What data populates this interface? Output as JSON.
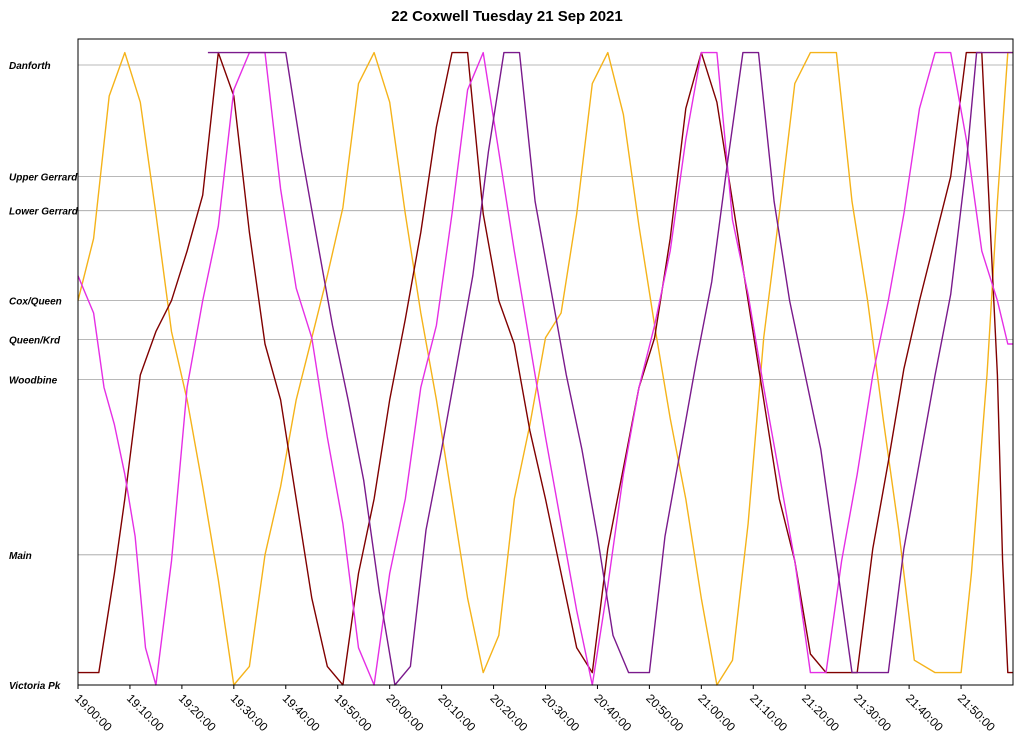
{
  "chart_data": {
    "type": "line",
    "title": "22 Coxwell Tuesday 21 Sep 2021",
    "xlabel": "",
    "ylabel": "",
    "x_range": [
      "19:00:00",
      "22:00:00"
    ],
    "x_ticks": [
      "19:00:00",
      "19:10:00",
      "19:20:00",
      "19:30:00",
      "19:40:00",
      "19:50:00",
      "20:00:00",
      "20:10:00",
      "20:20:00",
      "20:30:00",
      "20:40:00",
      "20:50:00",
      "21:00:00",
      "21:10:00",
      "21:20:00",
      "21:30:00",
      "21:40:00",
      "21:50:00"
    ],
    "stops": [
      {
        "name": "Danforth",
        "distance": 1.0
      },
      {
        "name": "Upper Gerrard",
        "distance": 0.82
      },
      {
        "name": "Lower Gerrard",
        "distance": 0.765
      },
      {
        "name": "Cox/Queen",
        "distance": 0.62
      },
      {
        "name": "Queen/Krd",
        "distance": 0.557
      },
      {
        "name": "Woodbine",
        "distance": 0.493
      },
      {
        "name": "Main",
        "distance": 0.21
      },
      {
        "name": "Victoria Pk",
        "distance": 0.0
      }
    ],
    "grid": true,
    "legend": "none",
    "series": [
      {
        "color": "#f5b31a",
        "points": [
          [
            0,
            0.62
          ],
          [
            3,
            0.72
          ],
          [
            6,
            0.95
          ],
          [
            9,
            1.02
          ],
          [
            12,
            0.94
          ],
          [
            15,
            0.76
          ],
          [
            18,
            0.57
          ],
          [
            21,
            0.46
          ],
          [
            24,
            0.32
          ],
          [
            27,
            0.17
          ],
          [
            30,
            0.0
          ],
          [
            33,
            0.03
          ],
          [
            36,
            0.21
          ],
          [
            39,
            0.32
          ],
          [
            42,
            0.46
          ],
          [
            45,
            0.56
          ],
          [
            48,
            0.66
          ],
          [
            51,
            0.77
          ],
          [
            54,
            0.97
          ],
          [
            57,
            1.02
          ],
          [
            60,
            0.94
          ],
          [
            63,
            0.76
          ],
          [
            66,
            0.6
          ],
          [
            69,
            0.46
          ],
          [
            72,
            0.3
          ],
          [
            75,
            0.14
          ],
          [
            78,
            0.02
          ],
          [
            81,
            0.08
          ],
          [
            84,
            0.3
          ],
          [
            87,
            0.42
          ],
          [
            90,
            0.56
          ],
          [
            93,
            0.6
          ],
          [
            96,
            0.76
          ],
          [
            99,
            0.97
          ],
          [
            102,
            1.02
          ],
          [
            105,
            0.92
          ],
          [
            108,
            0.74
          ],
          [
            111,
            0.58
          ],
          [
            114,
            0.43
          ],
          [
            117,
            0.3
          ],
          [
            120,
            0.14
          ],
          [
            123,
            0.0
          ],
          [
            126,
            0.04
          ],
          [
            129,
            0.26
          ],
          [
            132,
            0.56
          ],
          [
            135,
            0.76
          ],
          [
            138,
            0.97
          ],
          [
            141,
            1.02
          ],
          [
            146,
            1.02
          ],
          [
            149,
            0.78
          ],
          [
            152,
            0.62
          ],
          [
            155,
            0.43
          ],
          [
            158,
            0.25
          ],
          [
            161,
            0.04
          ],
          [
            165,
            0.02
          ],
          [
            170,
            0.02
          ],
          [
            172,
            0.18
          ],
          [
            175,
            0.5
          ],
          [
            177,
            0.78
          ],
          [
            179,
            1.02
          ],
          [
            180,
            1.02
          ]
        ]
      },
      {
        "color": "#800000",
        "points": [
          [
            0,
            0.02
          ],
          [
            4,
            0.02
          ],
          [
            7,
            0.18
          ],
          [
            9,
            0.3
          ],
          [
            12,
            0.5
          ],
          [
            15,
            0.57
          ],
          [
            18,
            0.62
          ],
          [
            21,
            0.7
          ],
          [
            24,
            0.79
          ],
          [
            27,
            1.02
          ],
          [
            30,
            0.95
          ],
          [
            33,
            0.73
          ],
          [
            36,
            0.55
          ],
          [
            39,
            0.46
          ],
          [
            42,
            0.3
          ],
          [
            45,
            0.14
          ],
          [
            48,
            0.03
          ],
          [
            51,
            0.0
          ],
          [
            54,
            0.18
          ],
          [
            57,
            0.3
          ],
          [
            60,
            0.46
          ],
          [
            63,
            0.59
          ],
          [
            66,
            0.73
          ],
          [
            69,
            0.9
          ],
          [
            72,
            1.02
          ],
          [
            75,
            1.02
          ],
          [
            78,
            0.76
          ],
          [
            81,
            0.62
          ],
          [
            84,
            0.55
          ],
          [
            87,
            0.41
          ],
          [
            90,
            0.3
          ],
          [
            93,
            0.18
          ],
          [
            96,
            0.06
          ],
          [
            99,
            0.02
          ],
          [
            102,
            0.22
          ],
          [
            105,
            0.35
          ],
          [
            108,
            0.48
          ],
          [
            111,
            0.56
          ],
          [
            114,
            0.72
          ],
          [
            117,
            0.93
          ],
          [
            120,
            1.02
          ],
          [
            123,
            0.94
          ],
          [
            126,
            0.78
          ],
          [
            129,
            0.62
          ],
          [
            132,
            0.46
          ],
          [
            135,
            0.3
          ],
          [
            138,
            0.2
          ],
          [
            141,
            0.05
          ],
          [
            144,
            0.02
          ],
          [
            150,
            0.02
          ],
          [
            153,
            0.22
          ],
          [
            156,
            0.36
          ],
          [
            159,
            0.51
          ],
          [
            162,
            0.62
          ],
          [
            165,
            0.72
          ],
          [
            168,
            0.82
          ],
          [
            171,
            1.02
          ],
          [
            174,
            1.02
          ],
          [
            177,
            0.5
          ],
          [
            178,
            0.2
          ],
          [
            179,
            0.02
          ],
          [
            180,
            0.02
          ]
        ]
      },
      {
        "color": "#e52fe5",
        "points": [
          [
            0,
            0.66
          ],
          [
            3,
            0.6
          ],
          [
            5,
            0.48
          ],
          [
            7,
            0.42
          ],
          [
            9,
            0.34
          ],
          [
            11,
            0.24
          ],
          [
            13,
            0.06
          ],
          [
            15,
            0.0
          ],
          [
            18,
            0.2
          ],
          [
            21,
            0.48
          ],
          [
            24,
            0.62
          ],
          [
            27,
            0.74
          ],
          [
            30,
            0.96
          ],
          [
            33,
            1.02
          ],
          [
            36,
            1.02
          ],
          [
            39,
            0.8
          ],
          [
            42,
            0.64
          ],
          [
            45,
            0.56
          ],
          [
            48,
            0.4
          ],
          [
            51,
            0.26
          ],
          [
            54,
            0.06
          ],
          [
            57,
            0.0
          ],
          [
            60,
            0.18
          ],
          [
            63,
            0.3
          ],
          [
            66,
            0.48
          ],
          [
            69,
            0.58
          ],
          [
            72,
            0.76
          ],
          [
            75,
            0.96
          ],
          [
            78,
            1.02
          ],
          [
            81,
            0.86
          ],
          [
            84,
            0.7
          ],
          [
            87,
            0.55
          ],
          [
            90,
            0.4
          ],
          [
            93,
            0.26
          ],
          [
            96,
            0.12
          ],
          [
            99,
            0.0
          ],
          [
            102,
            0.16
          ],
          [
            105,
            0.34
          ],
          [
            108,
            0.48
          ],
          [
            111,
            0.58
          ],
          [
            114,
            0.7
          ],
          [
            117,
            0.88
          ],
          [
            120,
            1.02
          ],
          [
            123,
            1.02
          ],
          [
            126,
            0.75
          ],
          [
            129,
            0.63
          ],
          [
            132,
            0.48
          ],
          [
            135,
            0.34
          ],
          [
            138,
            0.2
          ],
          [
            141,
            0.02
          ],
          [
            144,
            0.02
          ],
          [
            147,
            0.2
          ],
          [
            150,
            0.34
          ],
          [
            153,
            0.5
          ],
          [
            156,
            0.62
          ],
          [
            159,
            0.76
          ],
          [
            162,
            0.93
          ],
          [
            165,
            1.02
          ],
          [
            168,
            1.02
          ],
          [
            171,
            0.88
          ],
          [
            174,
            0.7
          ],
          [
            177,
            0.62
          ],
          [
            179,
            0.55
          ],
          [
            180,
            0.55
          ]
        ]
      },
      {
        "color": "#7a1a8c",
        "points": [
          [
            25,
            1.02
          ],
          [
            40,
            1.02
          ],
          [
            43,
            0.86
          ],
          [
            46,
            0.72
          ],
          [
            49,
            0.58
          ],
          [
            52,
            0.46
          ],
          [
            55,
            0.33
          ],
          [
            58,
            0.15
          ],
          [
            61,
            0.0
          ],
          [
            64,
            0.03
          ],
          [
            67,
            0.25
          ],
          [
            70,
            0.38
          ],
          [
            73,
            0.52
          ],
          [
            76,
            0.66
          ],
          [
            79,
            0.86
          ],
          [
            82,
            1.02
          ],
          [
            85,
            1.02
          ],
          [
            88,
            0.78
          ],
          [
            91,
            0.64
          ],
          [
            94,
            0.5
          ],
          [
            97,
            0.38
          ],
          [
            100,
            0.24
          ],
          [
            103,
            0.08
          ],
          [
            106,
            0.02
          ],
          [
            110,
            0.02
          ],
          [
            113,
            0.24
          ],
          [
            116,
            0.38
          ],
          [
            119,
            0.52
          ],
          [
            122,
            0.65
          ],
          [
            125,
            0.84
          ],
          [
            128,
            1.02
          ],
          [
            131,
            1.02
          ],
          [
            134,
            0.78
          ],
          [
            137,
            0.62
          ],
          [
            140,
            0.5
          ],
          [
            143,
            0.38
          ],
          [
            146,
            0.2
          ],
          [
            149,
            0.02
          ],
          [
            152,
            0.02
          ],
          [
            156,
            0.02
          ],
          [
            159,
            0.22
          ],
          [
            162,
            0.36
          ],
          [
            165,
            0.5
          ],
          [
            168,
            0.63
          ],
          [
            171,
            0.84
          ],
          [
            173,
            1.02
          ],
          [
            180,
            1.02
          ]
        ]
      }
    ]
  }
}
